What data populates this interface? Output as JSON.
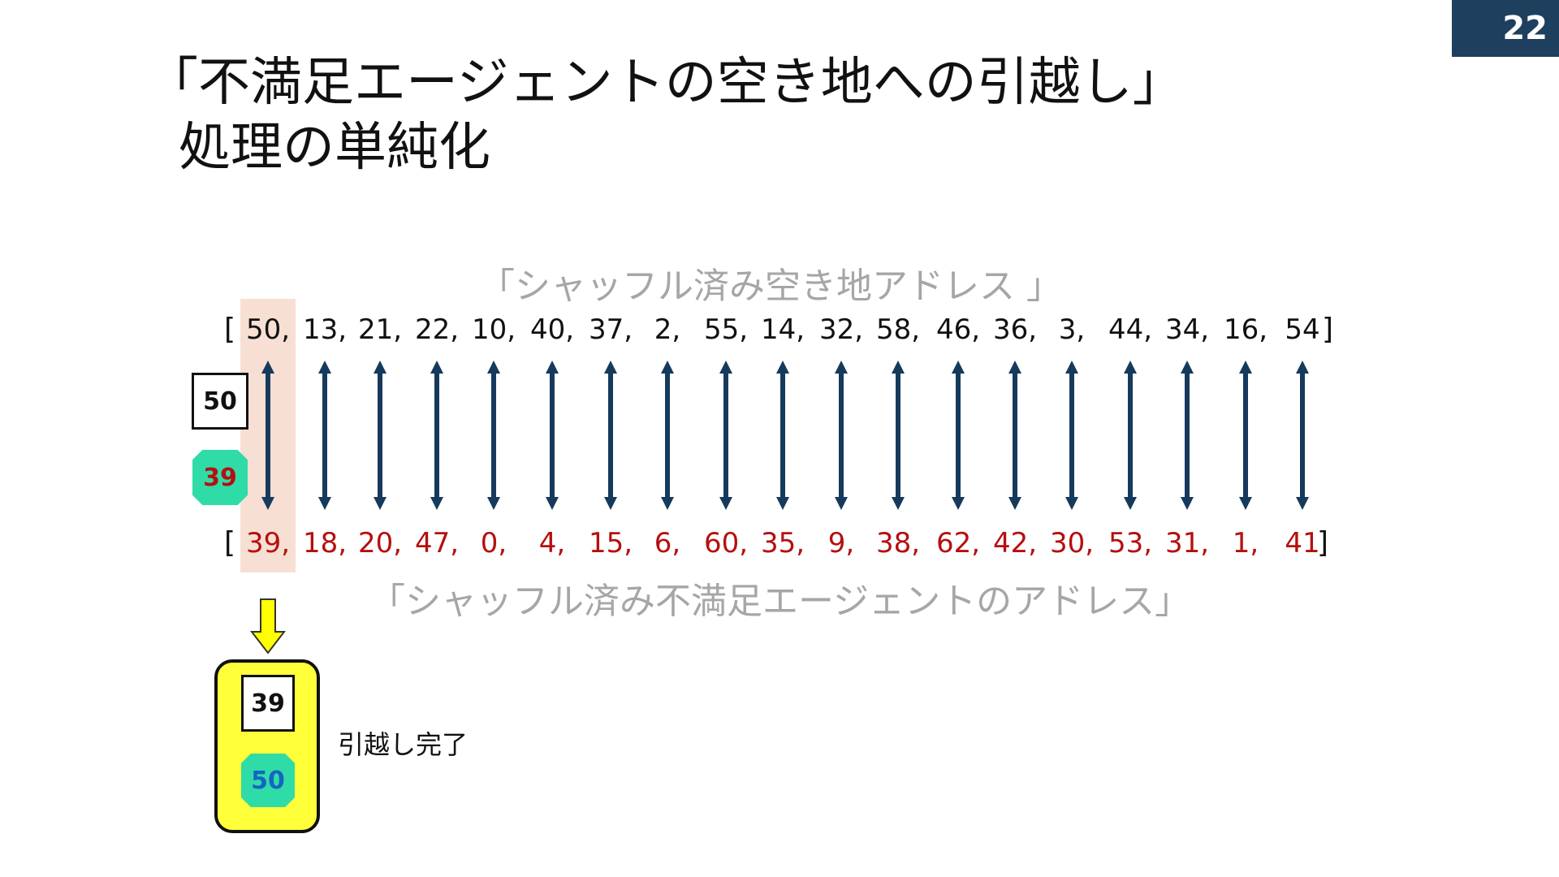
{
  "page_number": "22",
  "title": {
    "line1": "「不満足エージェントの空き地への引越し」",
    "line2": "処理の単純化"
  },
  "caption_top": "「シャッフル済み空き地アドレス 」",
  "caption_bottom": "「シャッフル済み不満足エージェントのアドレス」",
  "vacant_addresses": [
    "50,",
    "13,",
    "21,",
    "22,",
    "10,",
    "40,",
    "37,",
    "2,",
    "55,",
    "14,",
    "32,",
    "58,",
    "46,",
    "36,",
    "3,",
    "44,",
    "34,",
    "16,",
    "54"
  ],
  "agent_addresses": [
    "39,",
    "18,",
    "20,",
    "47,",
    "0,",
    "4,",
    "15,",
    "6,",
    "60,",
    "35,",
    "9,",
    "38,",
    "62,",
    "42,",
    "30,",
    "53,",
    "31,",
    "1,",
    "41"
  ],
  "bracket_open": "[",
  "bracket_close": "]",
  "before": {
    "address_card": "50",
    "agent": "39"
  },
  "after": {
    "address_card": "39",
    "agent": "50"
  },
  "done_label": "引越し完了",
  "colors": {
    "header": "#1f3f5f",
    "agent_numbers": "#b50f0f",
    "arrow": "#163a5c",
    "highlight": "#f8dfd3",
    "agent_fill": "#2fdca8",
    "moved_box": "#ffff3a",
    "down_arrow": "#ffff00"
  }
}
